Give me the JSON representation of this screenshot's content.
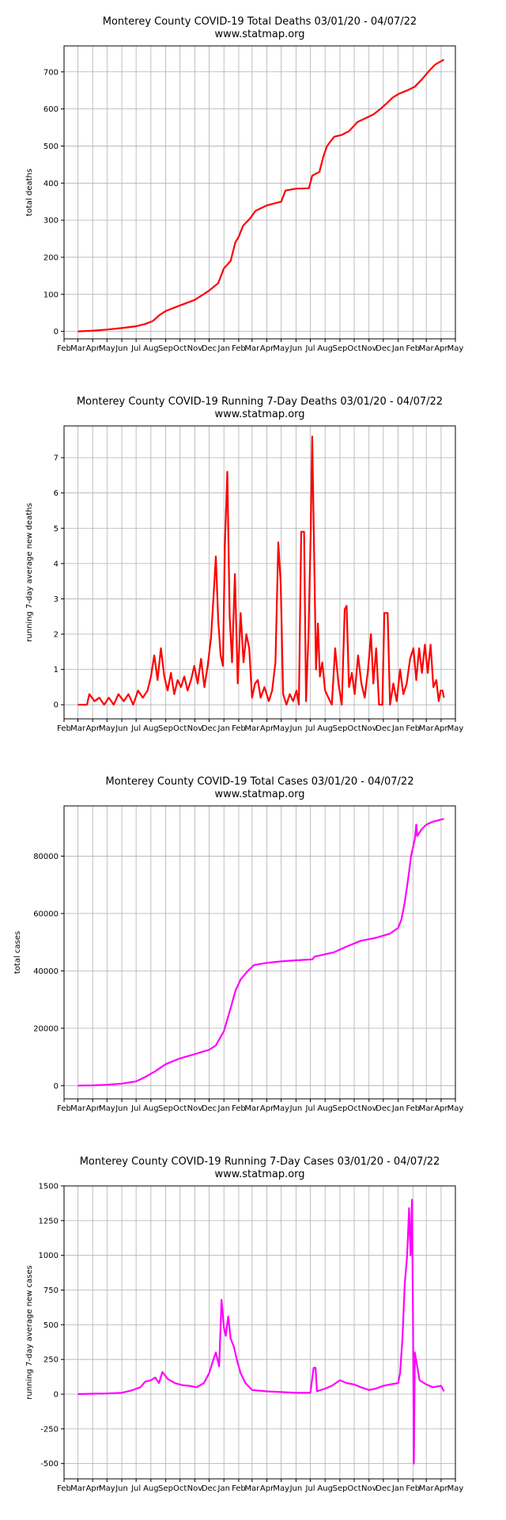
{
  "month_ticks": [
    "Feb",
    "Mar",
    "Apr",
    "May",
    "Jun",
    "Jul",
    "Aug",
    "Sep",
    "Oct",
    "Nov",
    "Dec",
    "Jan",
    "Feb",
    "Mar",
    "Apr",
    "May",
    "Jun",
    "Jul",
    "Aug",
    "Sep",
    "Oct",
    "Nov",
    "Dec",
    "Jan",
    "Feb",
    "Mar",
    "Apr",
    "May"
  ],
  "chart_data": [
    {
      "type": "line",
      "title": "Monterey County COVID-19 Total Deaths 03/01/20 - 04/07/22",
      "subtitle": "www.statmap.org",
      "xlabel": "",
      "ylabel": "total deaths",
      "x_range": [
        "2020-02-01",
        "2022-05-01"
      ],
      "ylim": [
        -20,
        770
      ],
      "yticks": [
        0,
        100,
        200,
        300,
        400,
        500,
        600,
        700
      ],
      "grid": true,
      "color": "#ff0000",
      "points": [
        [
          "2020-03-01",
          0
        ],
        [
          "2020-04-01",
          2
        ],
        [
          "2020-05-01",
          5
        ],
        [
          "2020-06-01",
          9
        ],
        [
          "2020-07-01",
          14
        ],
        [
          "2020-07-20",
          20
        ],
        [
          "2020-08-05",
          28
        ],
        [
          "2020-08-20",
          45
        ],
        [
          "2020-09-01",
          55
        ],
        [
          "2020-10-01",
          70
        ],
        [
          "2020-11-01",
          85
        ],
        [
          "2020-12-01",
          110
        ],
        [
          "2020-12-20",
          130
        ],
        [
          "2021-01-01",
          170
        ],
        [
          "2021-01-15",
          190
        ],
        [
          "2021-01-25",
          240
        ],
        [
          "2021-02-01",
          255
        ],
        [
          "2021-02-10",
          285
        ],
        [
          "2021-02-25",
          305
        ],
        [
          "2021-03-08",
          325
        ],
        [
          "2021-04-01",
          340
        ],
        [
          "2021-05-01",
          350
        ],
        [
          "2021-05-10",
          380
        ],
        [
          "2021-06-01",
          385
        ],
        [
          "2021-06-28",
          386
        ],
        [
          "2021-07-05",
          420
        ],
        [
          "2021-07-20",
          430
        ],
        [
          "2021-07-28",
          470
        ],
        [
          "2021-08-05",
          500
        ],
        [
          "2021-08-20",
          525
        ],
        [
          "2021-09-05",
          530
        ],
        [
          "2021-09-20",
          540
        ],
        [
          "2021-10-08",
          565
        ],
        [
          "2021-10-25",
          575
        ],
        [
          "2021-11-10",
          585
        ],
        [
          "2021-11-25",
          600
        ],
        [
          "2021-12-08",
          615
        ],
        [
          "2021-12-20",
          630
        ],
        [
          "2022-01-01",
          640
        ],
        [
          "2022-01-20",
          650
        ],
        [
          "2022-02-05",
          660
        ],
        [
          "2022-02-20",
          680
        ],
        [
          "2022-03-05",
          700
        ],
        [
          "2022-03-20",
          720
        ],
        [
          "2022-04-07",
          733
        ]
      ]
    },
    {
      "type": "line",
      "title": "Monterey County COVID-19 Running 7-Day Deaths 03/01/20 - 04/07/22",
      "subtitle": "www.statmap.org",
      "xlabel": "",
      "ylabel": "running 7-day average new deaths",
      "x_range": [
        "2020-02-01",
        "2022-05-01"
      ],
      "ylim": [
        -0.4,
        7.9
      ],
      "yticks": [
        0,
        1,
        2,
        3,
        4,
        5,
        6,
        7
      ],
      "grid": true,
      "color": "#ff0000",
      "points": [
        [
          "2020-03-01",
          0
        ],
        [
          "2020-03-20",
          0
        ],
        [
          "2020-03-25",
          0.3
        ],
        [
          "2020-04-05",
          0.1
        ],
        [
          "2020-04-15",
          0.2
        ],
        [
          "2020-04-25",
          0
        ],
        [
          "2020-05-05",
          0.2
        ],
        [
          "2020-05-15",
          0
        ],
        [
          "2020-05-25",
          0.3
        ],
        [
          "2020-06-05",
          0.1
        ],
        [
          "2020-06-15",
          0.3
        ],
        [
          "2020-06-25",
          0
        ],
        [
          "2020-07-05",
          0.4
        ],
        [
          "2020-07-15",
          0.2
        ],
        [
          "2020-07-25",
          0.4
        ],
        [
          "2020-08-01",
          0.8
        ],
        [
          "2020-08-08",
          1.4
        ],
        [
          "2020-08-15",
          0.7
        ],
        [
          "2020-08-22",
          1.6
        ],
        [
          "2020-08-29",
          0.8
        ],
        [
          "2020-09-05",
          0.4
        ],
        [
          "2020-09-12",
          0.9
        ],
        [
          "2020-09-19",
          0.3
        ],
        [
          "2020-09-26",
          0.7
        ],
        [
          "2020-10-03",
          0.5
        ],
        [
          "2020-10-10",
          0.8
        ],
        [
          "2020-10-17",
          0.4
        ],
        [
          "2020-10-24",
          0.7
        ],
        [
          "2020-10-31",
          1.1
        ],
        [
          "2020-11-07",
          0.6
        ],
        [
          "2020-11-14",
          1.3
        ],
        [
          "2020-11-21",
          0.5
        ],
        [
          "2020-11-28",
          1.1
        ],
        [
          "2020-12-05",
          1.9
        ],
        [
          "2020-12-10",
          3.0
        ],
        [
          "2020-12-15",
          4.2
        ],
        [
          "2020-12-20",
          2.4
        ],
        [
          "2020-12-25",
          1.4
        ],
        [
          "2020-12-30",
          1.1
        ],
        [
          "2021-01-03",
          4.5
        ],
        [
          "2021-01-08",
          6.6
        ],
        [
          "2021-01-13",
          2.5
        ],
        [
          "2021-01-18",
          1.2
        ],
        [
          "2021-01-24",
          3.7
        ],
        [
          "2021-01-30",
          0.6
        ],
        [
          "2021-02-05",
          2.6
        ],
        [
          "2021-02-11",
          1.2
        ],
        [
          "2021-02-17",
          2.0
        ],
        [
          "2021-02-23",
          1.6
        ],
        [
          "2021-03-01",
          0.2
        ],
        [
          "2021-03-07",
          0.6
        ],
        [
          "2021-03-13",
          0.7
        ],
        [
          "2021-03-19",
          0.2
        ],
        [
          "2021-03-27",
          0.5
        ],
        [
          "2021-04-05",
          0.1
        ],
        [
          "2021-04-12",
          0.4
        ],
        [
          "2021-04-19",
          1.2
        ],
        [
          "2021-04-25",
          4.6
        ],
        [
          "2021-04-30",
          3.4
        ],
        [
          "2021-05-05",
          0.3
        ],
        [
          "2021-05-12",
          0
        ],
        [
          "2021-05-19",
          0.3
        ],
        [
          "2021-05-26",
          0.1
        ],
        [
          "2021-06-02",
          0.4
        ],
        [
          "2021-06-07",
          0
        ],
        [
          "2021-06-12",
          4.9
        ],
        [
          "2021-06-18",
          4.9
        ],
        [
          "2021-06-22",
          0.1
        ],
        [
          "2021-06-27",
          1.9
        ],
        [
          "2021-07-02",
          5.0
        ],
        [
          "2021-07-05",
          7.6
        ],
        [
          "2021-07-09",
          4.3
        ],
        [
          "2021-07-13",
          1.0
        ],
        [
          "2021-07-17",
          2.3
        ],
        [
          "2021-07-21",
          0.8
        ],
        [
          "2021-07-26",
          1.2
        ],
        [
          "2021-08-01",
          0.4
        ],
        [
          "2021-08-08",
          0.2
        ],
        [
          "2021-08-15",
          0
        ],
        [
          "2021-08-22",
          1.6
        ],
        [
          "2021-08-29",
          0.6
        ],
        [
          "2021-09-05",
          0
        ],
        [
          "2021-09-11",
          2.7
        ],
        [
          "2021-09-15",
          2.8
        ],
        [
          "2021-09-20",
          0.5
        ],
        [
          "2021-09-26",
          0.9
        ],
        [
          "2021-10-02",
          0.3
        ],
        [
          "2021-10-09",
          1.4
        ],
        [
          "2021-10-16",
          0.6
        ],
        [
          "2021-10-23",
          0.2
        ],
        [
          "2021-10-30",
          1.0
        ],
        [
          "2021-11-05",
          2.0
        ],
        [
          "2021-11-10",
          0.6
        ],
        [
          "2021-11-16",
          1.6
        ],
        [
          "2021-11-22",
          0
        ],
        [
          "2021-11-29",
          0
        ],
        [
          "2021-12-03",
          2.6
        ],
        [
          "2021-12-10",
          2.6
        ],
        [
          "2021-12-15",
          0
        ],
        [
          "2021-12-22",
          0.6
        ],
        [
          "2021-12-29",
          0.1
        ],
        [
          "2022-01-05",
          1.0
        ],
        [
          "2022-01-12",
          0.3
        ],
        [
          "2022-01-19",
          0.6
        ],
        [
          "2022-01-26",
          1.3
        ],
        [
          "2022-02-02",
          1.6
        ],
        [
          "2022-02-08",
          0.7
        ],
        [
          "2022-02-14",
          1.6
        ],
        [
          "2022-02-20",
          0.9
        ],
        [
          "2022-02-26",
          1.7
        ],
        [
          "2022-03-04",
          0.9
        ],
        [
          "2022-03-10",
          1.7
        ],
        [
          "2022-03-16",
          0.5
        ],
        [
          "2022-03-22",
          0.7
        ],
        [
          "2022-03-27",
          0.1
        ],
        [
          "2022-03-31",
          0.4
        ],
        [
          "2022-04-04",
          0.4
        ],
        [
          "2022-04-07",
          0.2
        ]
      ]
    },
    {
      "type": "line",
      "title": "Monterey County COVID-19 Total Cases 03/01/20 - 04/07/22",
      "subtitle": "www.statmap.org",
      "xlabel": "",
      "ylabel": "total cases",
      "x_range": [
        "2020-02-01",
        "2022-05-01"
      ],
      "ylim": [
        -4600,
        97500
      ],
      "yticks": [
        0,
        20000,
        40000,
        60000,
        80000
      ],
      "grid": true,
      "color": "#ff00ff",
      "points": [
        [
          "2020-03-01",
          0
        ],
        [
          "2020-04-01",
          100
        ],
        [
          "2020-05-01",
          300
        ],
        [
          "2020-06-01",
          700
        ],
        [
          "2020-07-01",
          1500
        ],
        [
          "2020-07-20",
          3000
        ],
        [
          "2020-08-10",
          5000
        ],
        [
          "2020-09-01",
          7500
        ],
        [
          "2020-10-01",
          9500
        ],
        [
          "2020-11-01",
          11000
        ],
        [
          "2020-12-01",
          12500
        ],
        [
          "2020-12-15",
          14000
        ],
        [
          "2021-01-01",
          19000
        ],
        [
          "2021-01-15",
          27000
        ],
        [
          "2021-01-25",
          33000
        ],
        [
          "2021-02-05",
          37000
        ],
        [
          "2021-02-20",
          40000
        ],
        [
          "2021-03-05",
          42000
        ],
        [
          "2021-04-01",
          42800
        ],
        [
          "2021-05-01",
          43300
        ],
        [
          "2021-06-01",
          43700
        ],
        [
          "2021-07-05",
          44000
        ],
        [
          "2021-07-10",
          45000
        ],
        [
          "2021-08-01",
          45800
        ],
        [
          "2021-08-20",
          46500
        ],
        [
          "2021-09-15",
          48500
        ],
        [
          "2021-10-15",
          50500
        ],
        [
          "2021-11-15",
          51500
        ],
        [
          "2021-12-15",
          53000
        ],
        [
          "2022-01-01",
          55000
        ],
        [
          "2022-01-08",
          58000
        ],
        [
          "2022-01-15",
          64000
        ],
        [
          "2022-01-22",
          72000
        ],
        [
          "2022-01-28",
          80000
        ],
        [
          "2022-02-05",
          86000
        ],
        [
          "2022-02-08",
          91000
        ],
        [
          "2022-02-10",
          87000
        ],
        [
          "2022-02-20",
          89500
        ],
        [
          "2022-03-01",
          91000
        ],
        [
          "2022-03-15",
          92000
        ],
        [
          "2022-04-07",
          93000
        ]
      ]
    },
    {
      "type": "line",
      "title": "Monterey County COVID-19 Running 7-Day Cases 03/01/20 - 04/07/22",
      "subtitle": "www.statmap.org",
      "xlabel": "",
      "ylabel": "running 7-day average new cases",
      "x_range": [
        "2020-02-01",
        "2022-05-01"
      ],
      "ylim": [
        -610,
        1500
      ],
      "yticks": [
        -500,
        -250,
        0,
        250,
        500,
        750,
        1000,
        1250,
        1500
      ],
      "grid": true,
      "color": "#ff00ff",
      "points": [
        [
          "2020-03-01",
          0
        ],
        [
          "2020-04-01",
          3
        ],
        [
          "2020-05-01",
          5
        ],
        [
          "2020-06-01",
          10
        ],
        [
          "2020-06-20",
          25
        ],
        [
          "2020-07-10",
          50
        ],
        [
          "2020-07-20",
          90
        ],
        [
          "2020-08-01",
          100
        ],
        [
          "2020-08-10",
          120
        ],
        [
          "2020-08-18",
          80
        ],
        [
          "2020-08-25",
          160
        ],
        [
          "2020-09-05",
          110
        ],
        [
          "2020-09-20",
          80
        ],
        [
          "2020-10-05",
          65
        ],
        [
          "2020-10-20",
          60
        ],
        [
          "2020-11-05",
          50
        ],
        [
          "2020-11-20",
          80
        ],
        [
          "2020-12-01",
          150
        ],
        [
          "2020-12-10",
          250
        ],
        [
          "2020-12-15",
          300
        ],
        [
          "2020-12-22",
          200
        ],
        [
          "2020-12-27",
          680
        ],
        [
          "2021-01-01",
          480
        ],
        [
          "2021-01-05",
          420
        ],
        [
          "2021-01-10",
          560
        ],
        [
          "2021-01-15",
          400
        ],
        [
          "2021-01-22",
          340
        ],
        [
          "2021-01-28",
          250
        ],
        [
          "2021-02-05",
          150
        ],
        [
          "2021-02-15",
          80
        ],
        [
          "2021-03-01",
          30
        ],
        [
          "2021-04-01",
          20
        ],
        [
          "2021-05-01",
          15
        ],
        [
          "2021-06-01",
          10
        ],
        [
          "2021-07-01",
          10
        ],
        [
          "2021-07-08",
          190
        ],
        [
          "2021-07-12",
          190
        ],
        [
          "2021-07-15",
          20
        ],
        [
          "2021-08-01",
          40
        ],
        [
          "2021-08-15",
          60
        ],
        [
          "2021-09-01",
          100
        ],
        [
          "2021-09-15",
          80
        ],
        [
          "2021-10-01",
          70
        ],
        [
          "2021-10-15",
          50
        ],
        [
          "2021-11-01",
          30
        ],
        [
          "2021-11-15",
          40
        ],
        [
          "2021-12-01",
          60
        ],
        [
          "2021-12-15",
          70
        ],
        [
          "2022-01-01",
          80
        ],
        [
          "2022-01-05",
          150
        ],
        [
          "2022-01-10",
          400
        ],
        [
          "2022-01-15",
          800
        ],
        [
          "2022-01-20",
          1000
        ],
        [
          "2022-01-24",
          1340
        ],
        [
          "2022-01-27",
          1000
        ],
        [
          "2022-01-30",
          1400
        ],
        [
          "2022-02-01",
          600
        ],
        [
          "2022-02-03",
          -500
        ],
        [
          "2022-02-05",
          300
        ],
        [
          "2022-02-10",
          200
        ],
        [
          "2022-02-15",
          100
        ],
        [
          "2022-03-01",
          70
        ],
        [
          "2022-03-15",
          50
        ],
        [
          "2022-04-01",
          60
        ],
        [
          "2022-04-07",
          20
        ]
      ]
    }
  ]
}
